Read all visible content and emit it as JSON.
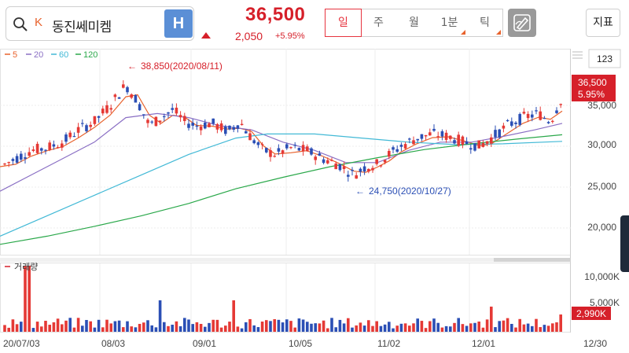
{
  "header": {
    "search_icon": "search-icon",
    "market_badge": "K",
    "stock_name": "동진쎄미켐",
    "h_label": "H",
    "price": "36,500",
    "change": "2,050",
    "change_pct": "+5.95%",
    "price_direction_icon": "up-triangle-icon",
    "accent_color": "#d6202a"
  },
  "period_tabs": [
    {
      "label": "일",
      "active": true
    },
    {
      "label": "주",
      "active": false
    },
    {
      "label": "월",
      "active": false
    },
    {
      "label": "1분",
      "active": false
    },
    {
      "label": "틱",
      "active": false
    }
  ],
  "toolbar": {
    "draw_icon": "pen-draw-icon",
    "indicator_label": "지표"
  },
  "chart": {
    "ma_legend": [
      {
        "label": "5",
        "color": "#e8622c"
      },
      {
        "label": "20",
        "color": "#8a6fc4"
      },
      {
        "label": "60",
        "color": "#42b9d6"
      },
      {
        "label": "120",
        "color": "#2aa84a"
      }
    ],
    "zoom_value": "123",
    "price_ticks": [
      "35,000",
      "30,000",
      "25,000",
      "20,000"
    ],
    "current_price_label": "36,500",
    "current_pct_label": "5.95%",
    "high_annotation": "38,850(2020/08/11)",
    "low_annotation": "24,750(2020/10/27)",
    "volume_label": "거래량",
    "volume_ticks": [
      "10,000K",
      "5,000K"
    ],
    "current_volume_label": "2,990K",
    "date_ticks": [
      "20/07/03",
      "08/03",
      "09/01",
      "10/05",
      "11/02",
      "12/01",
      "12/30"
    ],
    "up_color": "#e53935",
    "down_color": "#2b4fb5"
  }
}
